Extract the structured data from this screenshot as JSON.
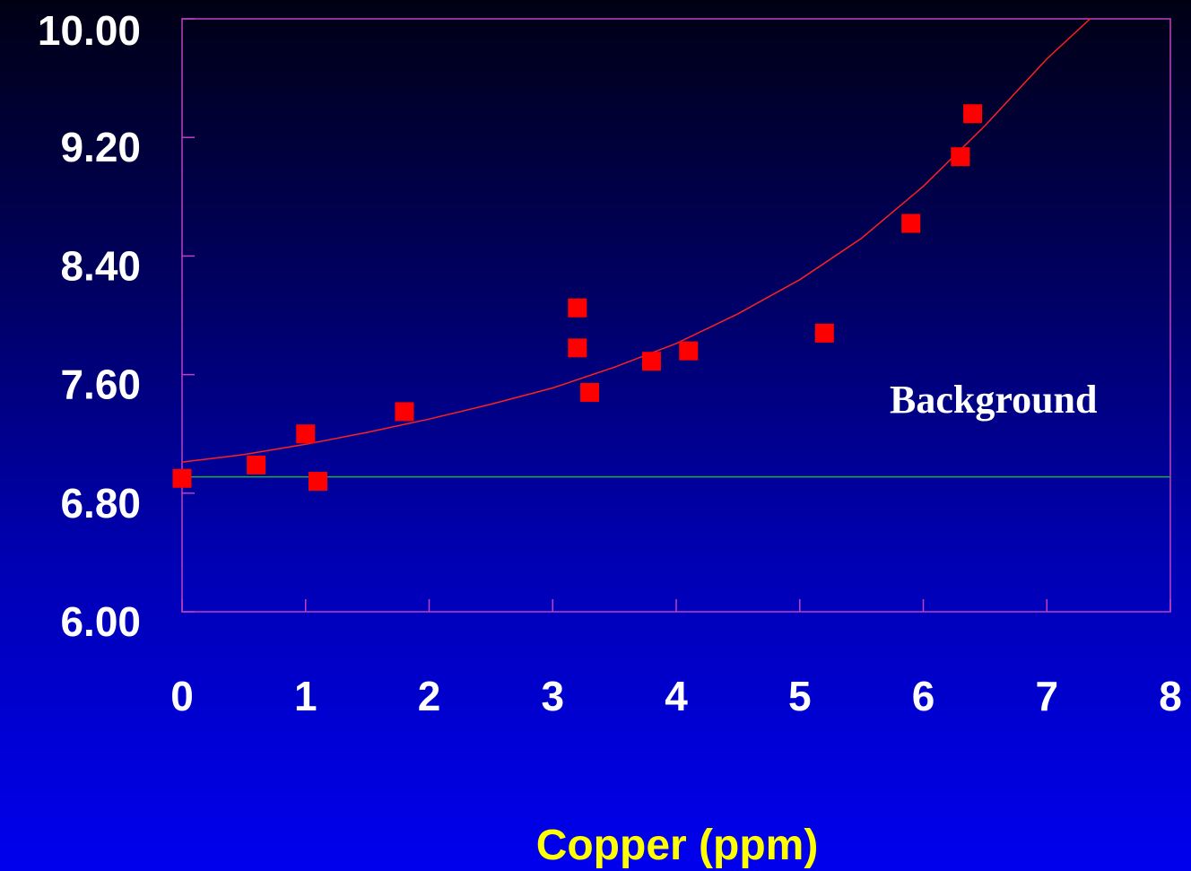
{
  "chart_data": {
    "type": "scatter",
    "title": "",
    "xlabel": "Copper (ppm)",
    "ylabel": "",
    "xlim": [
      0,
      8
    ],
    "ylim": [
      6.0,
      10.0
    ],
    "x_ticks": [
      0,
      1,
      2,
      3,
      4,
      5,
      6,
      7,
      8
    ],
    "x_tick_labels": [
      "0",
      "1",
      "2",
      "3",
      "4",
      "5",
      "6",
      "7",
      "8"
    ],
    "y_ticks": [
      6.0,
      6.8,
      7.6,
      8.4,
      9.2,
      10.0
    ],
    "y_tick_labels": [
      "6.00",
      "6.80",
      "7.60",
      "8.40",
      "9.20",
      "10.00"
    ],
    "grid": false,
    "legend": "none",
    "series": [
      {
        "type": "scatter",
        "marker": "square",
        "color": "#ff0000",
        "points": [
          {
            "x": 0.0,
            "y": 6.9
          },
          {
            "x": 0.6,
            "y": 6.99
          },
          {
            "x": 1.0,
            "y": 7.2
          },
          {
            "x": 1.1,
            "y": 6.88
          },
          {
            "x": 1.8,
            "y": 7.35
          },
          {
            "x": 3.2,
            "y": 8.05
          },
          {
            "x": 3.2,
            "y": 7.78
          },
          {
            "x": 3.3,
            "y": 7.48
          },
          {
            "x": 3.8,
            "y": 7.69
          },
          {
            "x": 4.1,
            "y": 7.76
          },
          {
            "x": 5.2,
            "y": 7.88
          },
          {
            "x": 5.9,
            "y": 8.62
          },
          {
            "x": 6.3,
            "y": 9.07
          },
          {
            "x": 6.4,
            "y": 9.36
          }
        ]
      },
      {
        "type": "line",
        "role": "trend",
        "color": "#ff2020",
        "x": [
          0,
          0.5,
          1,
          1.5,
          2,
          2.5,
          3,
          3.5,
          4,
          4.5,
          5,
          5.5,
          6,
          6.5,
          7,
          7.35
        ],
        "y": [
          7.01,
          7.06,
          7.13,
          7.21,
          7.3,
          7.4,
          7.51,
          7.65,
          7.81,
          8.01,
          8.24,
          8.52,
          8.87,
          9.28,
          9.73,
          10.0
        ]
      },
      {
        "type": "line",
        "role": "background",
        "color": "#22aa44",
        "x": [
          0,
          8
        ],
        "y": [
          6.91,
          6.91
        ]
      }
    ],
    "annotations": [
      {
        "text": "Background",
        "x": 6.4,
        "y": 7.62
      }
    ],
    "colors": {
      "axis": "#c040c0",
      "tick_label": "#ffffff",
      "x_title": "#ffff00"
    }
  }
}
